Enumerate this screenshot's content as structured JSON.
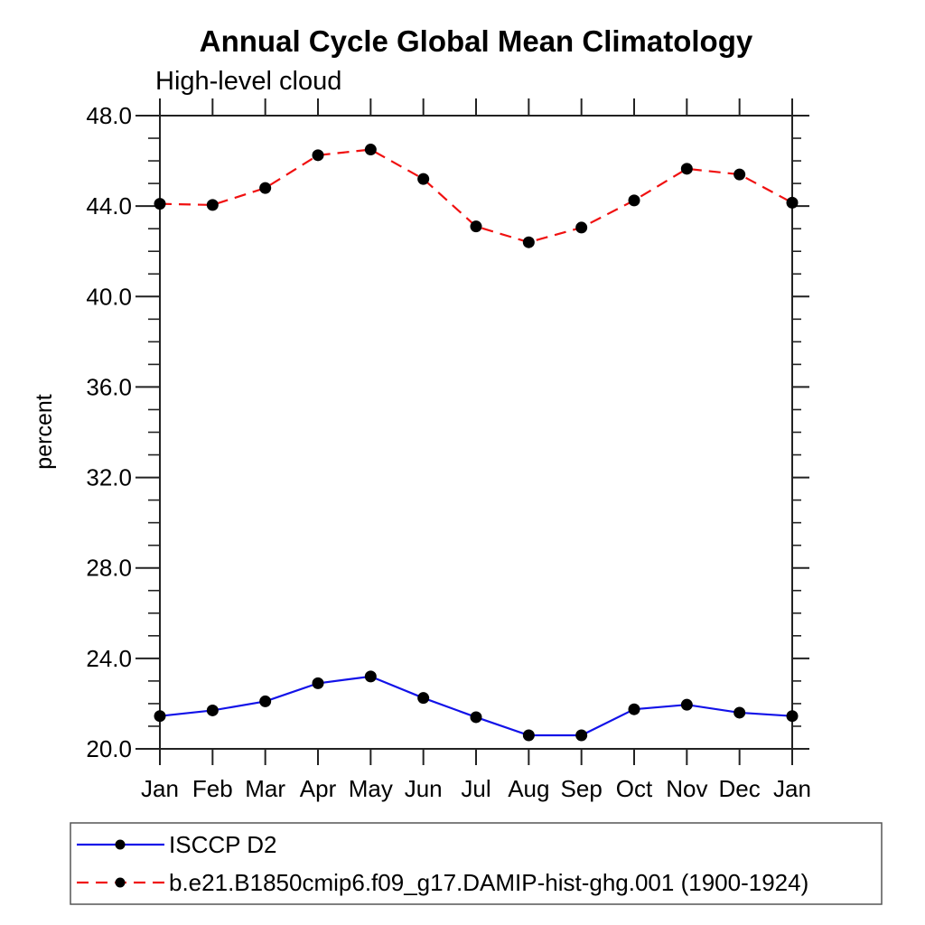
{
  "title": "Annual Cycle Global Mean Climatology",
  "subtitle": "High-level cloud",
  "colors": {
    "background": "#ffffff",
    "axis": "#222222",
    "marker": "#000000",
    "legend_border": "#555555",
    "series_blue": "#1212e8",
    "series_red": "#f01010"
  },
  "chart_data": {
    "type": "line",
    "title": "Annual Cycle Global Mean Climatology",
    "subtitle": "High-level cloud",
    "xlabel": "",
    "ylabel": "percent",
    "categories": [
      "Jan",
      "Feb",
      "Mar",
      "Apr",
      "May",
      "Jun",
      "Jul",
      "Aug",
      "Sep",
      "Oct",
      "Nov",
      "Dec",
      "Jan"
    ],
    "ylim": [
      20.0,
      48.0
    ],
    "y_major_ticks": [
      20.0,
      24.0,
      28.0,
      32.0,
      36.0,
      40.0,
      44.0,
      48.0
    ],
    "y_tick_labels": [
      "20.0",
      "24.0",
      "28.0",
      "32.0",
      "36.0",
      "40.0",
      "44.0",
      "48.0"
    ],
    "y_minor_step": 1.0,
    "grid": false,
    "legend_position": "bottom-left",
    "series": [
      {
        "name": "ISCCP D2",
        "color": "#1212e8",
        "line_style": "solid",
        "marker": "circle",
        "marker_color": "#000000",
        "values": [
          21.45,
          21.7,
          22.1,
          22.9,
          23.2,
          22.25,
          21.4,
          20.6,
          20.6,
          21.75,
          21.95,
          21.6,
          21.45
        ]
      },
      {
        "name": "b.e21.B1850cmip6.f09_g17.DAMIP-hist-ghg.001 (1900-1924)",
        "color": "#f01010",
        "line_style": "dashed",
        "marker": "circle",
        "marker_color": "#000000",
        "values": [
          44.1,
          44.05,
          44.8,
          46.25,
          46.5,
          45.2,
          43.1,
          42.4,
          43.05,
          44.25,
          45.65,
          45.4,
          44.15
        ]
      }
    ]
  }
}
